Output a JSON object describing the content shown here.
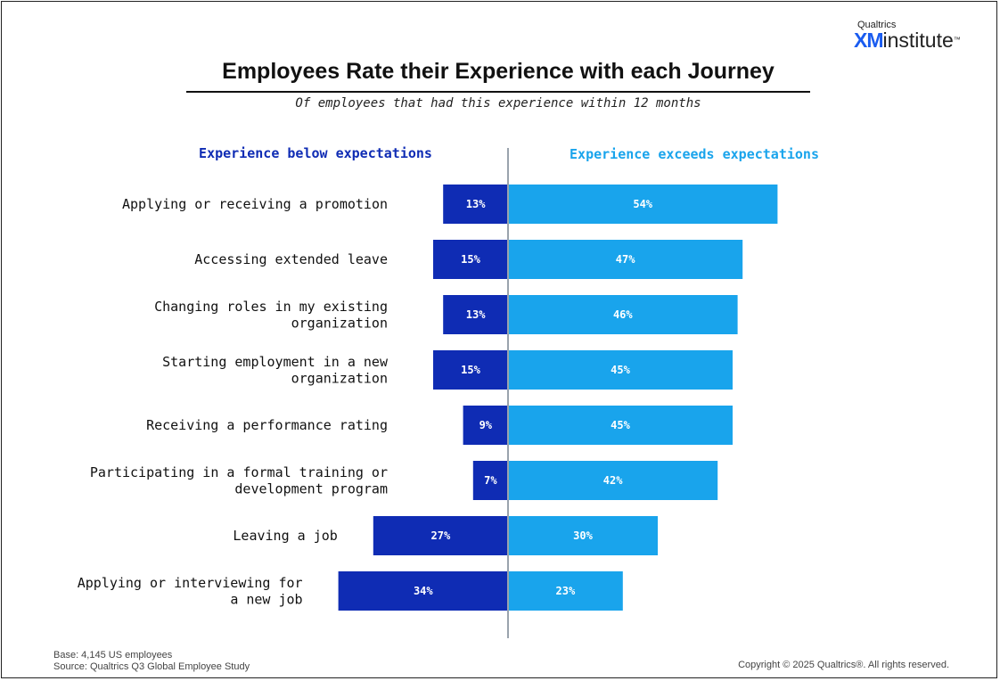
{
  "logo": {
    "small": "Qualtrics",
    "xm": "XM",
    "word": "institute",
    "tm": "™"
  },
  "title": "Employees Rate their Experience with each Journey",
  "subtitle": "Of employees that had this experience within 12 months",
  "footer": {
    "base": "Base: 4,145 US employees",
    "source": "Source: Qualtrics Q3 Global Employee Study",
    "copyright": "Copyright © 2025 Qualtrics®. All rights reserved."
  },
  "colors": {
    "below": "#0f2cb4",
    "exceeds": "#19a4ec",
    "axis": "#9aa3ad"
  },
  "chart_data": {
    "type": "bar",
    "orientation": "horizontal-diverging",
    "categories": [
      [
        "Applying or receiving a promotion"
      ],
      [
        "Accessing extended leave"
      ],
      [
        "Changing roles in my existing",
        "organization"
      ],
      [
        "Starting employment in a new",
        "organization"
      ],
      [
        "Receiving a performance rating"
      ],
      [
        "Participating in a formal training or",
        "development program"
      ],
      [
        "Leaving a job"
      ],
      [
        "Applying or interviewing for",
        "a new job"
      ]
    ],
    "series": [
      {
        "name": "Experience below expectations",
        "values": [
          13,
          15,
          13,
          15,
          9,
          7,
          27,
          34
        ],
        "direction": "left"
      },
      {
        "name": "Experience exceeds expectations",
        "values": [
          54,
          47,
          46,
          45,
          45,
          42,
          30,
          23
        ],
        "direction": "right"
      }
    ],
    "value_suffix": "%",
    "xlim": [
      -40,
      60
    ]
  }
}
